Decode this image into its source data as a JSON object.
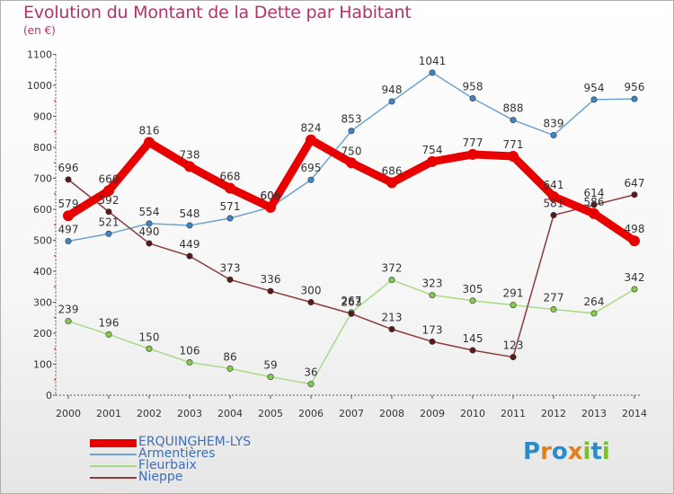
{
  "title": "Evolution du Montant de la Dette par Habitant",
  "unit": "(en €)",
  "logo": {
    "text": "Proxiti",
    "letters": [
      {
        "ch": "P",
        "color": "#2d8bc9"
      },
      {
        "ch": "r",
        "color": "#e4801c"
      },
      {
        "ch": "o",
        "color": "#2d8bc9"
      },
      {
        "ch": "x",
        "color": "#e4801c"
      },
      {
        "ch": "i",
        "color": "#7cbf2c"
      },
      {
        "ch": "t",
        "color": "#2d8bc9"
      },
      {
        "ch": "i",
        "color": "#7cbf2c"
      }
    ]
  },
  "chart_data": {
    "type": "line",
    "title": "Evolution du Montant de la Dette par Habitant",
    "ylabel": "(en €)",
    "xlabel": "",
    "ylim": [
      0,
      1100
    ],
    "yticks": [
      0,
      100,
      200,
      300,
      400,
      500,
      600,
      700,
      800,
      900,
      1000,
      1100
    ],
    "categories": [
      "2000",
      "2001",
      "2002",
      "2003",
      "2004",
      "2005",
      "2006",
      "2007",
      "2008",
      "2009",
      "2010",
      "2011",
      "2012",
      "2013",
      "2014"
    ],
    "grid": false,
    "legend_position": "bottom-left",
    "series": [
      {
        "name": "ERQUINGHEM-LYS",
        "color": "#e80000",
        "marker": "#e80000",
        "bold": true,
        "values": [
          579,
          660,
          816,
          738,
          668,
          606,
          824,
          750,
          686,
          754,
          777,
          771,
          641,
          586,
          498
        ]
      },
      {
        "name": "Armentières",
        "color": "#6ea2cf",
        "marker": "#3d87c7",
        "bold": false,
        "values": [
          497,
          521,
          554,
          548,
          571,
          606,
          695,
          853,
          948,
          1041,
          958,
          888,
          839,
          954,
          956
        ]
      },
      {
        "name": "Fleurbaix",
        "color": "#a8dc84",
        "marker": "#86cc4c",
        "bold": false,
        "values": [
          239,
          196,
          150,
          106,
          86,
          59,
          36,
          267,
          372,
          323,
          305,
          291,
          277,
          264,
          342
        ]
      },
      {
        "name": "Nieppe",
        "color": "#8a3a3a",
        "marker": "#5a1a1a",
        "bold": false,
        "values": [
          696,
          592,
          490,
          449,
          373,
          336,
          300,
          263,
          213,
          173,
          145,
          123,
          581,
          614,
          647
        ]
      }
    ]
  }
}
